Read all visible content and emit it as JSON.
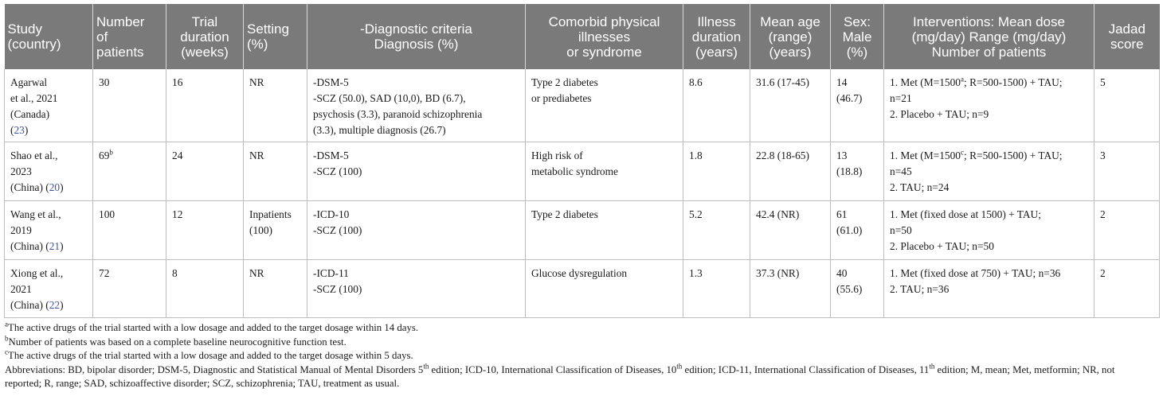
{
  "headers": [
    {
      "lines": [
        "Study",
        "(country)"
      ],
      "align": "left"
    },
    {
      "lines": [
        "Number",
        "of",
        "patients"
      ],
      "align": "left"
    },
    {
      "lines": [
        "Trial",
        "duration",
        "(weeks)"
      ],
      "align": "center"
    },
    {
      "lines": [
        "Setting",
        "(%)"
      ],
      "align": "left"
    },
    {
      "lines": [
        "-Diagnostic criteria",
        "Diagnosis (%)"
      ],
      "align": "center"
    },
    {
      "lines": [
        "Comorbid physical",
        "illnesses",
        "or syndrome"
      ],
      "align": "center"
    },
    {
      "lines": [
        "Illness",
        "duration",
        "(years)"
      ],
      "align": "center"
    },
    {
      "lines": [
        "Mean age",
        "(range)",
        "(years)"
      ],
      "align": "center"
    },
    {
      "lines": [
        "Sex:",
        "Male",
        "(%)"
      ],
      "align": "center"
    },
    {
      "lines": [
        "Interventions: Mean dose",
        "(mg/day) Range (mg/day)",
        "Number of patients"
      ],
      "align": "center"
    },
    {
      "lines": [
        "Jadad",
        "score"
      ],
      "align": "center"
    }
  ],
  "rows": [
    {
      "study": [
        [
          {
            "t": "Agarwal"
          }
        ],
        [
          {
            "t": "et al., 2021"
          }
        ],
        [
          {
            "t": "(Canada)"
          }
        ],
        [
          {
            "t": "("
          },
          {
            "t": "23",
            "ref": true
          },
          {
            "t": ")"
          }
        ]
      ],
      "patients": [
        [
          {
            "t": "30"
          }
        ]
      ],
      "duration": [
        [
          {
            "t": "16"
          }
        ]
      ],
      "setting": [
        [
          {
            "t": "NR"
          }
        ]
      ],
      "diagnosis": [
        [
          {
            "t": "-DSM-5"
          }
        ],
        [
          {
            "t": "-SCZ (50.0), SAD (10,0), BD (6.7),"
          }
        ],
        [
          {
            "t": "psychosis (3.3), paranoid schizophrenia"
          }
        ],
        [
          {
            "t": "(3.3), multiple diagnosis (26.7)"
          }
        ]
      ],
      "comorbid": [
        [
          {
            "t": "Type 2 diabetes"
          }
        ],
        [
          {
            "t": "or prediabetes"
          }
        ]
      ],
      "illness": [
        [
          {
            "t": "8.6"
          }
        ]
      ],
      "age": [
        [
          {
            "t": "31.6 (17-45)"
          }
        ]
      ],
      "sex": [
        [
          {
            "t": "14"
          }
        ],
        [
          {
            "t": "(46.7)"
          }
        ]
      ],
      "interventions": [
        [
          {
            "t": "1. Met (M=1500"
          },
          {
            "t": "a",
            "sup": true
          },
          {
            "t": "; R=500-1500) + TAU;"
          }
        ],
        [
          {
            "t": "n=21"
          }
        ],
        [
          {
            "t": "2. Placebo + TAU; n=9"
          }
        ]
      ],
      "jadad": [
        [
          {
            "t": "5"
          }
        ]
      ]
    },
    {
      "study": [
        [
          {
            "t": "Shao et al.,"
          }
        ],
        [
          {
            "t": "2023"
          }
        ],
        [
          {
            "t": "(China) ("
          },
          {
            "t": "20",
            "ref": true
          },
          {
            "t": ")"
          }
        ]
      ],
      "patients": [
        [
          {
            "t": "69"
          },
          {
            "t": "b",
            "sup": true
          }
        ]
      ],
      "duration": [
        [
          {
            "t": "24"
          }
        ]
      ],
      "setting": [
        [
          {
            "t": "NR"
          }
        ]
      ],
      "diagnosis": [
        [
          {
            "t": "-DSM-5"
          }
        ],
        [
          {
            "t": "-SCZ (100)"
          }
        ]
      ],
      "comorbid": [
        [
          {
            "t": "High risk of"
          }
        ],
        [
          {
            "t": "metabolic syndrome"
          }
        ]
      ],
      "illness": [
        [
          {
            "t": "1.8"
          }
        ]
      ],
      "age": [
        [
          {
            "t": "22.8 (18-65)"
          }
        ]
      ],
      "sex": [
        [
          {
            "t": "13"
          }
        ],
        [
          {
            "t": "(18.8)"
          }
        ]
      ],
      "interventions": [
        [
          {
            "t": "1. Met (M=1500"
          },
          {
            "t": "c",
            "sup": true
          },
          {
            "t": "; R=500-1500) + TAU;"
          }
        ],
        [
          {
            "t": "n=45"
          }
        ],
        [
          {
            "t": "2. TAU; n=24"
          }
        ]
      ],
      "jadad": [
        [
          {
            "t": "3"
          }
        ]
      ]
    },
    {
      "study": [
        [
          {
            "t": "Wang et al.,"
          }
        ],
        [
          {
            "t": "2019"
          }
        ],
        [
          {
            "t": "(China) ("
          },
          {
            "t": "21",
            "ref": true
          },
          {
            "t": ")"
          }
        ]
      ],
      "patients": [
        [
          {
            "t": "100"
          }
        ]
      ],
      "duration": [
        [
          {
            "t": "12"
          }
        ]
      ],
      "setting": [
        [
          {
            "t": "Inpatients"
          }
        ],
        [
          {
            "t": "(100)"
          }
        ]
      ],
      "diagnosis": [
        [
          {
            "t": "-ICD-10"
          }
        ],
        [
          {
            "t": "-SCZ (100)"
          }
        ]
      ],
      "comorbid": [
        [
          {
            "t": "Type 2 diabetes"
          }
        ]
      ],
      "illness": [
        [
          {
            "t": "5.2"
          }
        ]
      ],
      "age": [
        [
          {
            "t": "42.4 (NR)"
          }
        ]
      ],
      "sex": [
        [
          {
            "t": "61"
          }
        ],
        [
          {
            "t": "(61.0)"
          }
        ]
      ],
      "interventions": [
        [
          {
            "t": "1. Met (fixed dose at 1500) + TAU;"
          }
        ],
        [
          {
            "t": "n=50"
          }
        ],
        [
          {
            "t": "2. Placebo + TAU; n=50"
          }
        ]
      ],
      "jadad": [
        [
          {
            "t": "2"
          }
        ]
      ]
    },
    {
      "study": [
        [
          {
            "t": "Xiong et al.,"
          }
        ],
        [
          {
            "t": "2021"
          }
        ],
        [
          {
            "t": "(China) ("
          },
          {
            "t": "22",
            "ref": true
          },
          {
            "t": ")"
          }
        ]
      ],
      "patients": [
        [
          {
            "t": "72"
          }
        ]
      ],
      "duration": [
        [
          {
            "t": "8"
          }
        ]
      ],
      "setting": [
        [
          {
            "t": "NR"
          }
        ]
      ],
      "diagnosis": [
        [
          {
            "t": "-ICD-11"
          }
        ],
        [
          {
            "t": "-SCZ (100)"
          }
        ]
      ],
      "comorbid": [
        [
          {
            "t": "Glucose dysregulation"
          }
        ]
      ],
      "illness": [
        [
          {
            "t": "1.3"
          }
        ]
      ],
      "age": [
        [
          {
            "t": "37.3 (NR)"
          }
        ]
      ],
      "sex": [
        [
          {
            "t": "40"
          }
        ],
        [
          {
            "t": "(55.6)"
          }
        ]
      ],
      "interventions": [
        [
          {
            "t": "1. Met (fixed dose at 750) + TAU; n=36"
          }
        ],
        [
          {
            "t": "2. TAU; n=36"
          }
        ]
      ],
      "jadad": [
        [
          {
            "t": "2"
          }
        ]
      ]
    }
  ],
  "footnotes": [
    [
      {
        "t": "a",
        "sup": true
      },
      {
        "t": "The active drugs of the trial started with a low dosage and added to the target dosage within 14 days."
      }
    ],
    [
      {
        "t": "b",
        "sup": true
      },
      {
        "t": "Number of patients was based on a complete baseline neurocognitive function test."
      }
    ],
    [
      {
        "t": "c",
        "sup": true
      },
      {
        "t": "The active drugs of the trial started with a low dosage and added to the target dosage within 5 days."
      }
    ],
    [
      {
        "t": "Abbreviations: BD, bipolar disorder; DSM-5, Diagnostic and Statistical Manual of Mental Disorders 5"
      },
      {
        "t": "th",
        "sup": true
      },
      {
        "t": " edition; ICD-10, International Classification of Diseases, 10"
      },
      {
        "t": "th",
        "sup": true
      },
      {
        "t": " edition; ICD-11, International Classification of Diseases, 11"
      },
      {
        "t": "th",
        "sup": true
      },
      {
        "t": " edition; M, mean; Met, metformin; NR, not"
      }
    ],
    [
      {
        "t": "reported; R, range; SAD, schizoaffective disorder; SCZ, schizophrenia; TAU, treatment as usual."
      }
    ]
  ]
}
